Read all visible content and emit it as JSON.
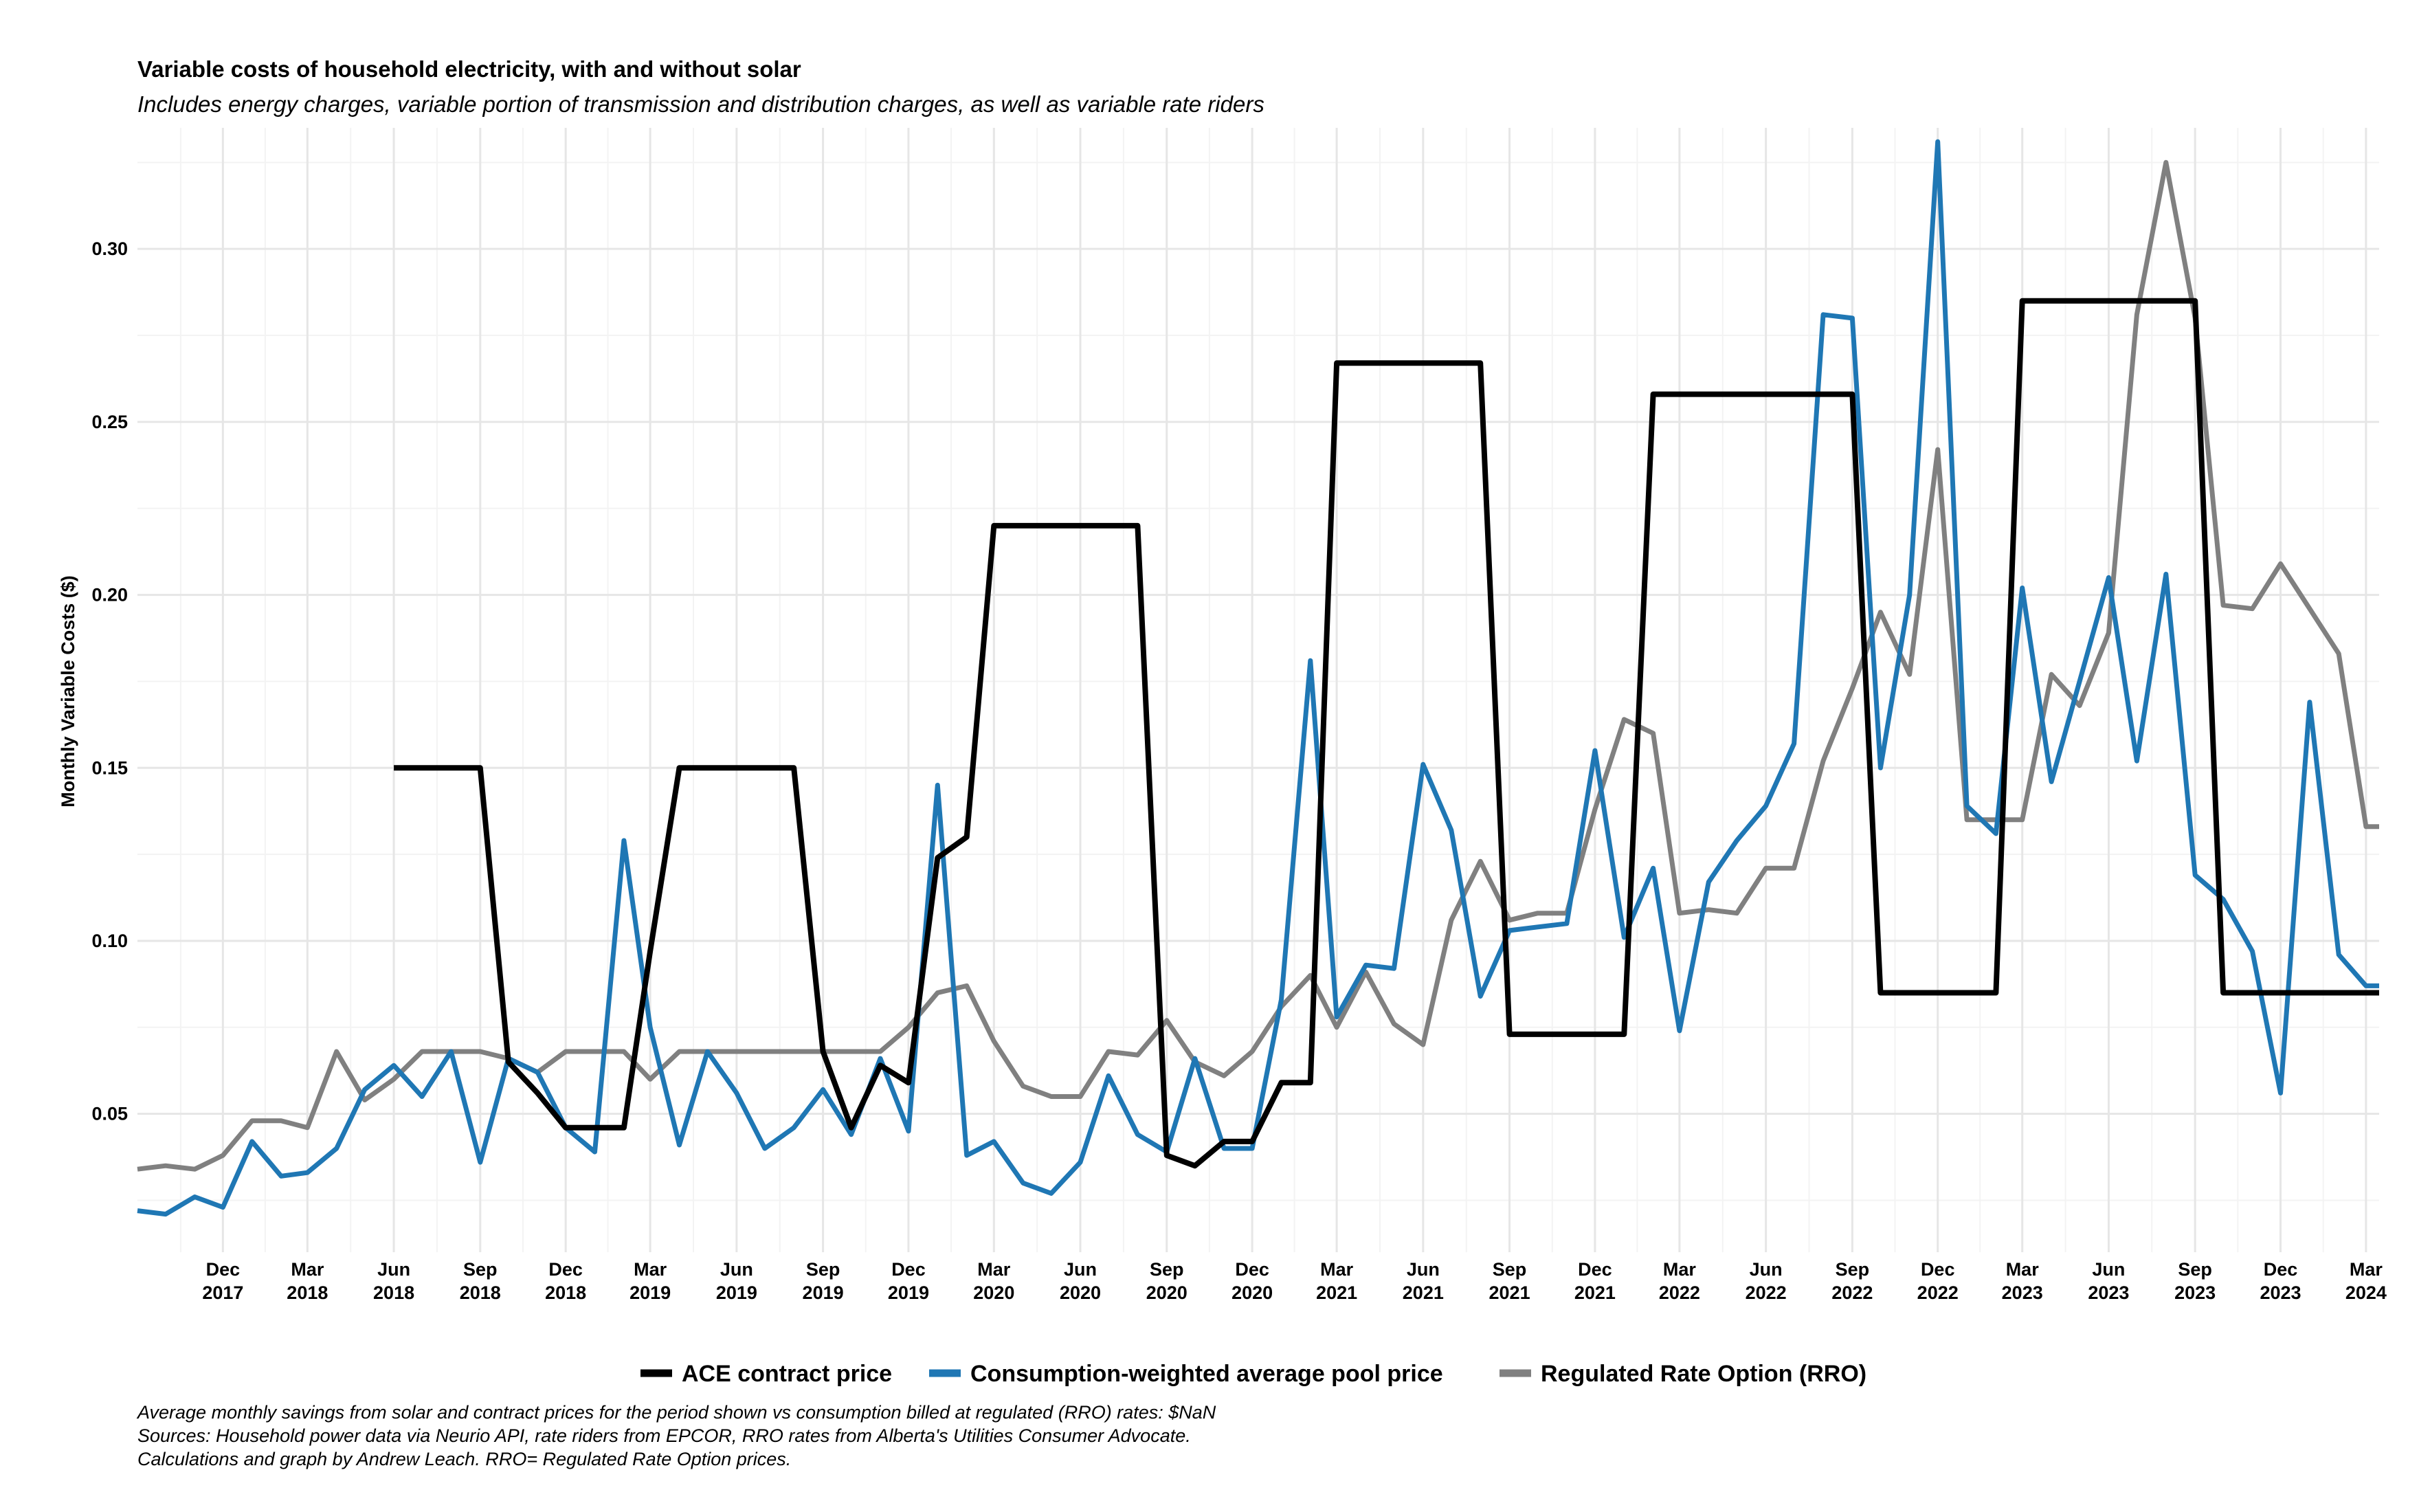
{
  "chart_data": {
    "type": "line",
    "title": "Variable costs of household electricity, with and without solar",
    "subtitle": "Includes energy charges, variable portion of transmission and distribution charges, as well as variable rate riders",
    "xlabel": "",
    "ylabel": "Monthly Variable Costs ($)",
    "ylim": [
      0.01,
      0.335
    ],
    "y_ticks": [
      "0.05",
      "0.10",
      "0.15",
      "0.20",
      "0.25",
      "0.30"
    ],
    "x_start": "2017-09-01",
    "x_end": "2024-03-15",
    "x_ticks": [
      {
        "date": "2017-12-01",
        "month": "Dec",
        "year": "2017"
      },
      {
        "date": "2018-03-01",
        "month": "Mar",
        "year": "2018"
      },
      {
        "date": "2018-06-01",
        "month": "Jun",
        "year": "2018"
      },
      {
        "date": "2018-09-01",
        "month": "Sep",
        "year": "2018"
      },
      {
        "date": "2018-12-01",
        "month": "Dec",
        "year": "2018"
      },
      {
        "date": "2019-03-01",
        "month": "Mar",
        "year": "2019"
      },
      {
        "date": "2019-06-01",
        "month": "Jun",
        "year": "2019"
      },
      {
        "date": "2019-09-01",
        "month": "Sep",
        "year": "2019"
      },
      {
        "date": "2019-12-01",
        "month": "Dec",
        "year": "2019"
      },
      {
        "date": "2020-03-01",
        "month": "Mar",
        "year": "2020"
      },
      {
        "date": "2020-06-01",
        "month": "Jun",
        "year": "2020"
      },
      {
        "date": "2020-09-01",
        "month": "Sep",
        "year": "2020"
      },
      {
        "date": "2020-12-01",
        "month": "Dec",
        "year": "2020"
      },
      {
        "date": "2021-03-01",
        "month": "Mar",
        "year": "2021"
      },
      {
        "date": "2021-06-01",
        "month": "Jun",
        "year": "2021"
      },
      {
        "date": "2021-09-01",
        "month": "Sep",
        "year": "2021"
      },
      {
        "date": "2021-12-01",
        "month": "Dec",
        "year": "2021"
      },
      {
        "date": "2022-03-01",
        "month": "Mar",
        "year": "2022"
      },
      {
        "date": "2022-06-01",
        "month": "Jun",
        "year": "2022"
      },
      {
        "date": "2022-09-01",
        "month": "Sep",
        "year": "2022"
      },
      {
        "date": "2022-12-01",
        "month": "Dec",
        "year": "2022"
      },
      {
        "date": "2023-03-01",
        "month": "Mar",
        "year": "2023"
      },
      {
        "date": "2023-06-01",
        "month": "Jun",
        "year": "2023"
      },
      {
        "date": "2023-09-01",
        "month": "Sep",
        "year": "2023"
      },
      {
        "date": "2023-12-01",
        "month": "Dec",
        "year": "2023"
      },
      {
        "date": "2024-03-01",
        "month": "Mar",
        "year": "2024"
      }
    ],
    "grid": true,
    "legend_position": "bottom",
    "x": [
      "2017-09-01",
      "2017-10-01",
      "2017-11-01",
      "2017-12-01",
      "2018-01-01",
      "2018-02-01",
      "2018-03-01",
      "2018-04-01",
      "2018-05-01",
      "2018-06-01",
      "2018-07-01",
      "2018-08-01",
      "2018-09-01",
      "2018-10-01",
      "2018-11-01",
      "2018-12-01",
      "2019-01-01",
      "2019-02-01",
      "2019-03-01",
      "2019-04-01",
      "2019-05-01",
      "2019-06-01",
      "2019-07-01",
      "2019-08-01",
      "2019-09-01",
      "2019-10-01",
      "2019-11-01",
      "2019-12-01",
      "2020-01-01",
      "2020-02-01",
      "2020-03-01",
      "2020-04-01",
      "2020-05-01",
      "2020-06-01",
      "2020-07-01",
      "2020-08-01",
      "2020-09-01",
      "2020-10-01",
      "2020-11-01",
      "2020-12-01",
      "2021-01-01",
      "2021-02-01",
      "2021-03-01",
      "2021-04-01",
      "2021-05-01",
      "2021-06-01",
      "2021-07-01",
      "2021-08-01",
      "2021-09-01",
      "2021-10-01",
      "2021-11-01",
      "2021-12-01",
      "2022-01-01",
      "2022-02-01",
      "2022-03-01",
      "2022-04-01",
      "2022-05-01",
      "2022-06-01",
      "2022-07-01",
      "2022-08-01",
      "2022-09-01",
      "2022-10-01",
      "2022-11-01",
      "2022-12-01",
      "2023-01-01",
      "2023-02-01",
      "2023-03-01",
      "2023-04-01",
      "2023-05-01",
      "2023-06-01",
      "2023-07-01",
      "2023-08-01",
      "2023-09-01",
      "2023-10-01",
      "2023-11-01",
      "2023-12-01",
      "2024-01-01",
      "2024-02-01",
      "2024-03-01",
      "2024-03-15"
    ],
    "series": [
      {
        "name": "ACE contract price",
        "color": "#000000",
        "values": [
          null,
          null,
          null,
          null,
          null,
          null,
          null,
          null,
          null,
          0.15,
          0.15,
          0.15,
          0.15,
          0.065,
          0.056,
          0.046,
          0.046,
          0.046,
          0.097,
          0.15,
          0.15,
          0.15,
          0.15,
          0.15,
          0.068,
          0.046,
          0.064,
          0.059,
          0.124,
          0.13,
          0.22,
          0.22,
          0.22,
          0.22,
          0.22,
          0.22,
          0.038,
          0.035,
          0.042,
          0.042,
          0.059,
          0.059,
          0.267,
          0.267,
          0.267,
          0.267,
          0.267,
          0.267,
          0.073,
          0.073,
          0.073,
          0.073,
          0.073,
          0.258,
          0.258,
          0.258,
          0.258,
          0.258,
          0.258,
          0.258,
          0.258,
          0.085,
          0.085,
          0.085,
          0.085,
          0.085,
          0.285,
          0.285,
          0.285,
          0.285,
          0.285,
          0.285,
          0.285,
          0.085,
          0.085,
          0.085,
          0.085,
          0.085,
          0.085,
          0.085
        ]
      },
      {
        "name": "Consumption-weighted average pool price",
        "color": "#1f77b4",
        "values": [
          0.022,
          0.021,
          0.026,
          0.023,
          0.042,
          0.032,
          0.033,
          0.04,
          0.057,
          0.064,
          0.055,
          0.068,
          0.036,
          0.066,
          0.062,
          0.046,
          0.039,
          0.129,
          0.075,
          0.041,
          0.068,
          0.056,
          0.04,
          0.046,
          0.057,
          0.044,
          0.066,
          0.045,
          0.145,
          0.038,
          0.042,
          0.03,
          0.027,
          0.036,
          0.061,
          0.044,
          0.039,
          0.066,
          0.04,
          0.04,
          0.083,
          0.181,
          0.078,
          0.093,
          0.092,
          0.151,
          0.132,
          0.084,
          0.103,
          0.104,
          0.105,
          0.155,
          0.101,
          0.121,
          0.074,
          0.117,
          0.129,
          0.139,
          0.157,
          0.281,
          0.28,
          0.15,
          0.2,
          0.331,
          0.139,
          0.131,
          0.202,
          0.146,
          0.175,
          0.205,
          0.152,
          0.206,
          0.119,
          0.112,
          0.097,
          0.056,
          0.169,
          0.096,
          0.087,
          0.087
        ]
      },
      {
        "name": "Regulated Rate Option (RRO)",
        "color": "#808080",
        "values": [
          0.034,
          0.035,
          0.034,
          0.038,
          0.048,
          0.048,
          0.046,
          0.068,
          0.054,
          0.06,
          0.068,
          0.068,
          0.068,
          0.066,
          0.062,
          0.068,
          0.068,
          0.068,
          0.06,
          0.068,
          0.068,
          0.068,
          0.068,
          0.068,
          0.068,
          0.068,
          0.068,
          0.075,
          0.085,
          0.087,
          0.071,
          0.058,
          0.055,
          0.055,
          0.068,
          0.067,
          0.077,
          0.065,
          0.061,
          0.068,
          0.081,
          0.09,
          0.075,
          0.091,
          0.076,
          0.07,
          0.106,
          0.123,
          0.106,
          0.108,
          0.108,
          0.138,
          0.164,
          0.16,
          0.108,
          0.109,
          0.108,
          0.121,
          0.121,
          0.152,
          0.173,
          0.195,
          0.177,
          0.242,
          0.135,
          0.135,
          0.135,
          0.177,
          0.168,
          0.189,
          0.281,
          0.325,
          0.28,
          0.197,
          0.196,
          0.209,
          0.196,
          0.183,
          0.133,
          0.133
        ]
      }
    ]
  },
  "legend": {
    "items": [
      "ACE contract price",
      "Consumption-weighted average pool price",
      "Regulated Rate Option (RRO)"
    ]
  },
  "caption": {
    "line1": "Average monthly savings from solar and contract prices for the period shown vs consumption billed at regulated (RRO) rates: $NaN",
    "line2": "Sources: Household power data via Neurio API, rate riders from EPCOR, RRO rates from Alberta's Utilities Consumer Advocate.",
    "line3": "Calculations and graph by Andrew Leach. RRO= Regulated Rate Option prices."
  }
}
